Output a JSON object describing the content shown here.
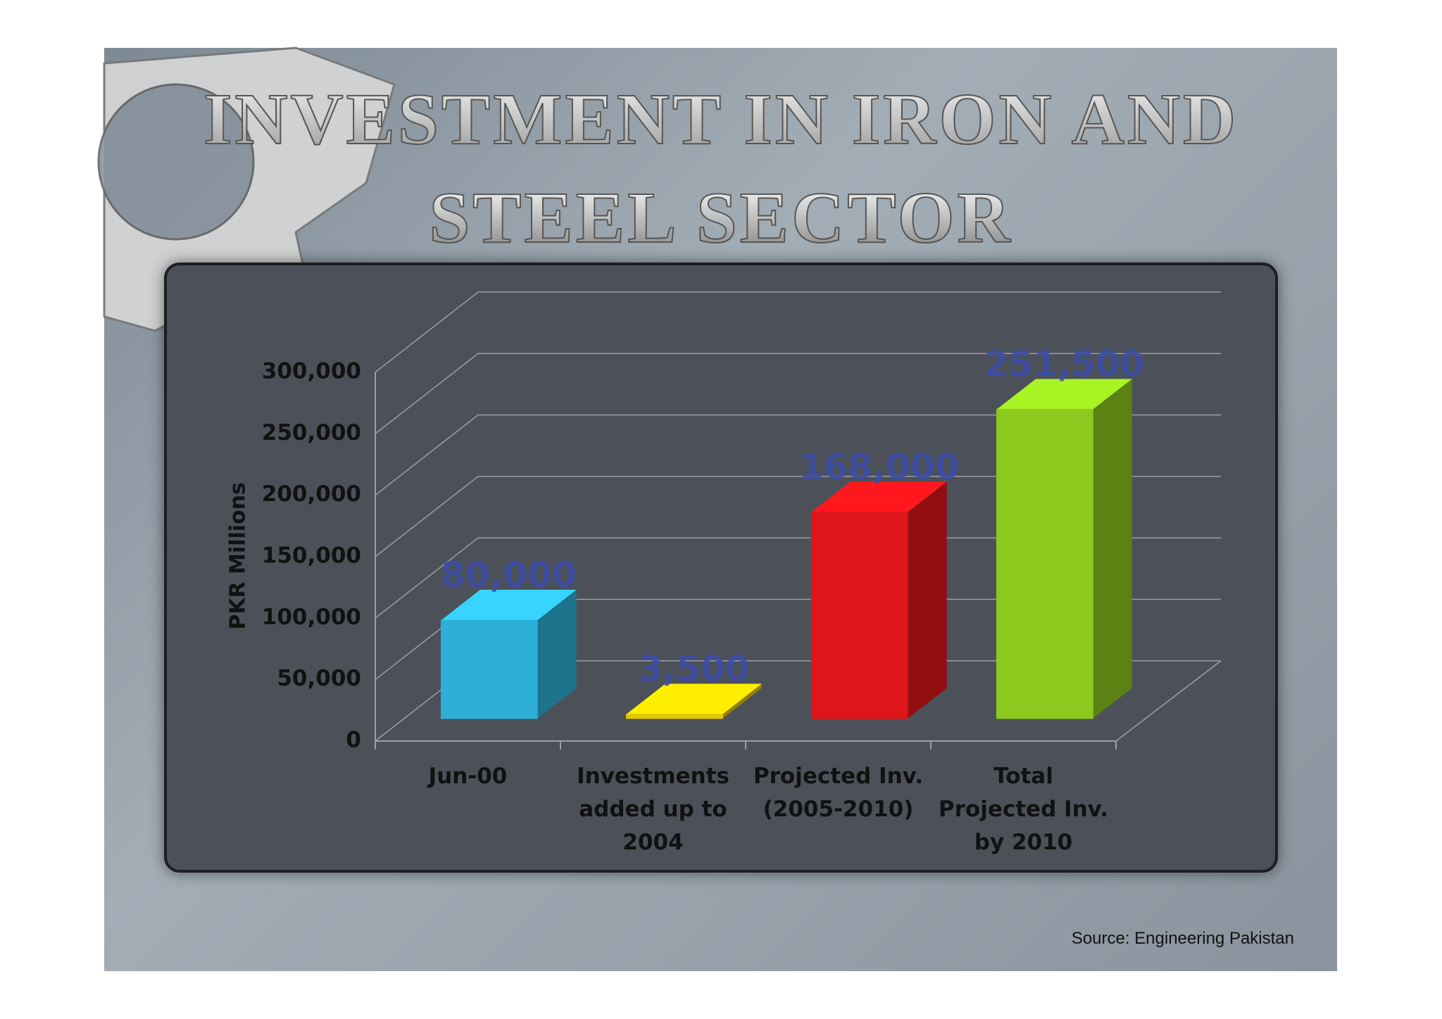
{
  "chart_data": {
    "type": "bar3d",
    "title": "INVESTMENT IN IRON AND STEEL SECTOR",
    "y_label": "PKR Millions",
    "categories": [
      "Jun-00",
      "Investments added up to 2004",
      "Projected Inv. (2005-2010)",
      "Total Projected Inv. by 2010"
    ],
    "values": [
      80000,
      3500,
      168000,
      251500
    ],
    "value_labels": [
      "80,000",
      "3,500",
      "168,000",
      "251,500"
    ],
    "colors": [
      "#2fb8e2",
      "#f0cf00",
      "#ea161b",
      "#93d21f"
    ],
    "ylim": [
      0,
      300000
    ],
    "yticks": [
      0,
      {
        "value": 50000,
        "label": "50,000"
      },
      {
        "value": 100000,
        "label": "100,000"
      },
      {
        "value": 150000,
        "label": "150,000"
      },
      {
        "value": 200000,
        "label": "200,000"
      },
      {
        "value": 250000,
        "label": "250,000"
      },
      {
        "value": 300000,
        "label": "300,000"
      }
    ],
    "grid": true,
    "source": "Source: Engineering Pakistan"
  }
}
